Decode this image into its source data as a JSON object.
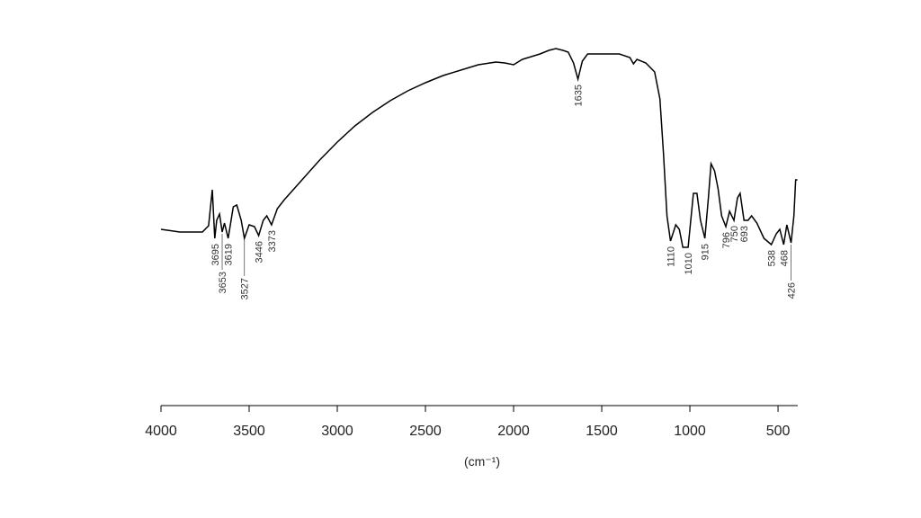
{
  "chart_data": {
    "type": "line",
    "x": [
      4000,
      3893,
      3765,
      3730,
      3709,
      3695,
      3684,
      3668,
      3653,
      3640,
      3619,
      3590,
      3570,
      3545,
      3527,
      3500,
      3470,
      3446,
      3420,
      3400,
      3373,
      3340,
      3300,
      3200,
      3100,
      3000,
      2900,
      2800,
      2700,
      2600,
      2500,
      2400,
      2300,
      2200,
      2100,
      2050,
      2000,
      1950,
      1900,
      1850,
      1800,
      1760,
      1720,
      1690,
      1660,
      1635,
      1610,
      1580,
      1500,
      1400,
      1340,
      1320,
      1300,
      1250,
      1200,
      1170,
      1150,
      1130,
      1110,
      1080,
      1060,
      1040,
      1010,
      980,
      960,
      940,
      915,
      895,
      880,
      860,
      840,
      820,
      796,
      775,
      750,
      730,
      715,
      693,
      670,
      650,
      620,
      580,
      538,
      510,
      490,
      468,
      450,
      426,
      410,
      400,
      390
    ],
    "series": [
      {
        "color": "#000000",
        "values": [
          196,
          193,
          193,
          200,
          240,
          186,
          206,
          213,
          193,
          203,
          186,
          221,
          223,
          206,
          186,
          201,
          199,
          189,
          206,
          211,
          201,
          219,
          229,
          251,
          273,
          293,
          311,
          326,
          339,
          350,
          359,
          367,
          373,
          379,
          382,
          381,
          379,
          385,
          388,
          391,
          395,
          397,
          395,
          393,
          381,
          363,
          383,
          391,
          391,
          391,
          387,
          380,
          385,
          381,
          371,
          341,
          281,
          211,
          183,
          201,
          196,
          176,
          176,
          236,
          236,
          206,
          186,
          231,
          269,
          261,
          241,
          211,
          199,
          216,
          206,
          231,
          236,
          206,
          206,
          211,
          203,
          186,
          179,
          191,
          196,
          179,
          201,
          181,
          211,
          251,
          251
        ]
      }
    ],
    "peaks": [
      3695,
      3653,
      3619,
      3527,
      3446,
      3373,
      1635,
      1110,
      1010,
      915,
      796,
      750,
      693,
      538,
      468,
      426
    ],
    "xlim": [
      4000,
      388
    ],
    "ylim": [
      0,
      411
    ],
    "xticks": [
      4000,
      3500,
      3000,
      2500,
      2000,
      1500,
      1000,
      500
    ],
    "xlabel": "(cm⁻¹)"
  }
}
